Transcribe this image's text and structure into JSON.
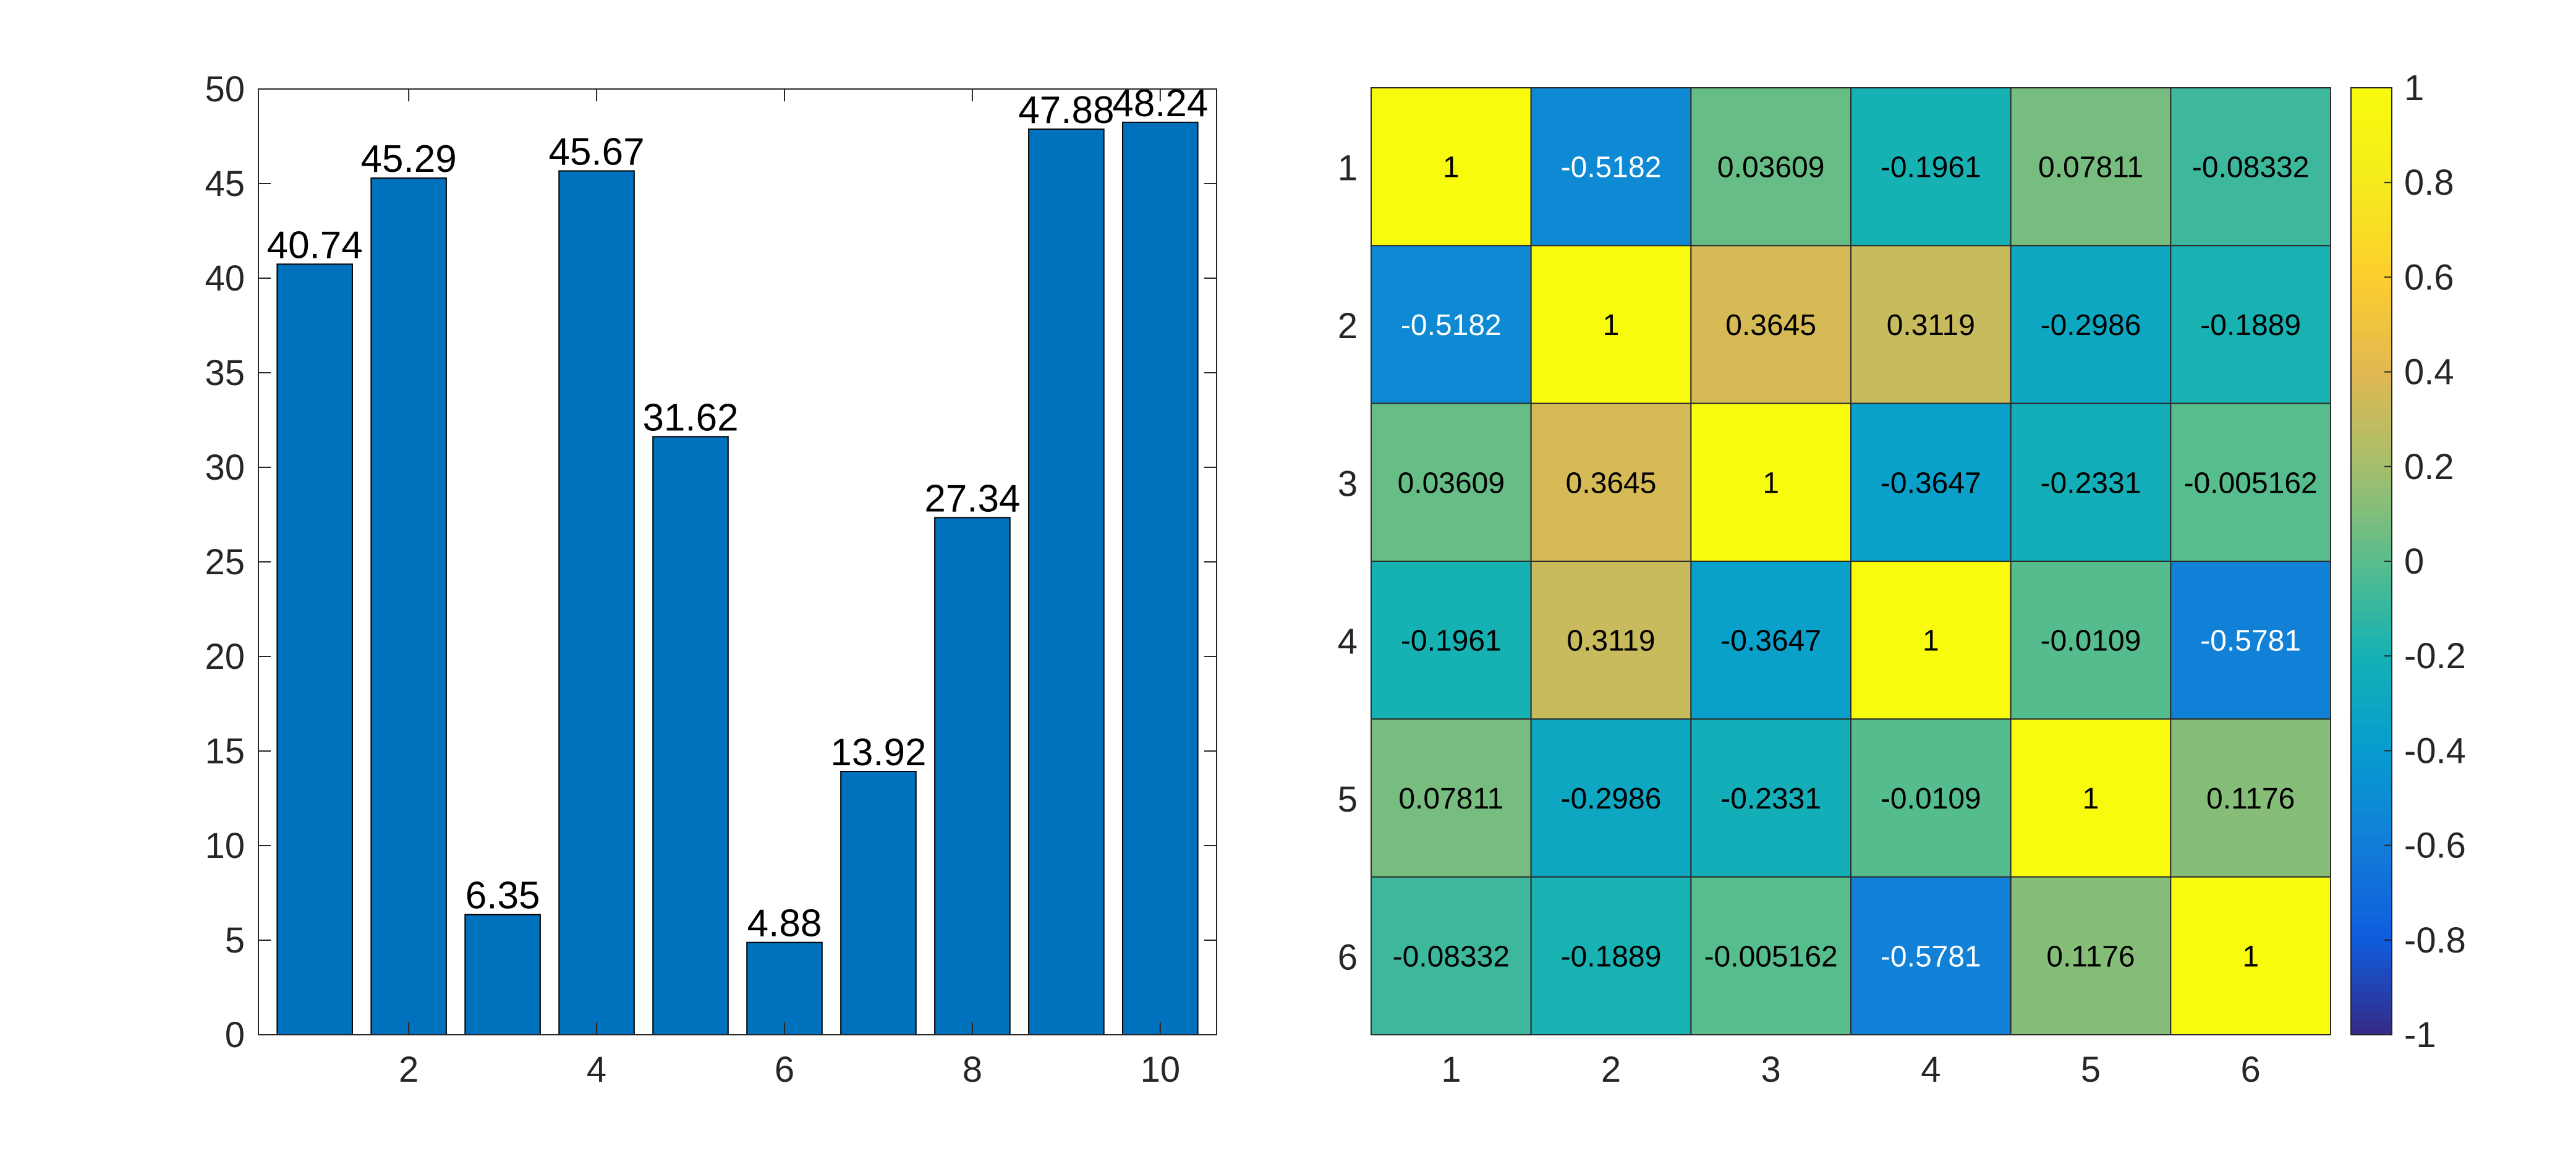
{
  "chart_data": [
    {
      "type": "bar",
      "x": [
        1,
        2,
        3,
        4,
        5,
        6,
        7,
        8,
        9,
        10
      ],
      "values": [
        40.74,
        45.29,
        6.35,
        45.67,
        31.62,
        4.88,
        13.92,
        27.34,
        47.88,
        48.24
      ],
      "data_labels": [
        "40.74",
        "45.29",
        "6.35",
        "45.67",
        "31.62",
        "4.88",
        "13.92",
        "27.34",
        "47.88",
        "48.24"
      ],
      "xticks": [
        2,
        4,
        6,
        8,
        10
      ],
      "yticks": [
        0,
        5,
        10,
        15,
        20,
        25,
        30,
        35,
        40,
        45,
        50
      ],
      "xlim": [
        0.4,
        10.6
      ],
      "ylim": [
        0,
        50
      ],
      "title": "",
      "xlabel": "",
      "ylabel": "",
      "grid": false,
      "bar_color": "#0072BD"
    },
    {
      "type": "heatmap",
      "rows": [
        1,
        2,
        3,
        4,
        5,
        6
      ],
      "cols": [
        1,
        2,
        3,
        4,
        5,
        6
      ],
      "values": [
        [
          1,
          -0.5182,
          0.03609,
          -0.1961,
          0.07811,
          -0.08332
        ],
        [
          -0.5182,
          1,
          0.3645,
          0.3119,
          -0.2986,
          -0.1889
        ],
        [
          0.03609,
          0.3645,
          1,
          -0.3647,
          -0.2331,
          -0.005162
        ],
        [
          -0.1961,
          0.3119,
          -0.3647,
          1,
          -0.0109,
          -0.5781
        ],
        [
          0.07811,
          -0.2986,
          -0.2331,
          -0.0109,
          1,
          0.1176
        ],
        [
          -0.08332,
          -0.1889,
          -0.005162,
          -0.5781,
          0.1176,
          1
        ]
      ],
      "cell_labels": [
        [
          "1",
          "-0.5182",
          "0.03609",
          "-0.1961",
          "0.07811",
          "-0.08332"
        ],
        [
          "-0.5182",
          "1",
          "0.3645",
          "0.3119",
          "-0.2986",
          "-0.1889"
        ],
        [
          "0.03609",
          "0.3645",
          "1",
          "-0.3647",
          "-0.2331",
          "-0.005162"
        ],
        [
          "-0.1961",
          "0.3119",
          "-0.3647",
          "1",
          "-0.0109",
          "-0.5781"
        ],
        [
          "0.07811",
          "-0.2986",
          "-0.2331",
          "-0.0109",
          "1",
          "0.1176"
        ],
        [
          "-0.08332",
          "-0.1889",
          "-0.005162",
          "-0.5781",
          "0.1176",
          "1"
        ]
      ],
      "colorbar": {
        "range": [
          -1,
          1
        ],
        "ticks": [
          "-1",
          "-0.8",
          "-0.6",
          "-0.4",
          "-0.2",
          "0",
          "0.2",
          "0.4",
          "0.6",
          "0.8",
          "1"
        ],
        "colormap": "parula",
        "location": "right"
      },
      "title": "",
      "xlabel": "",
      "ylabel": ""
    }
  ]
}
